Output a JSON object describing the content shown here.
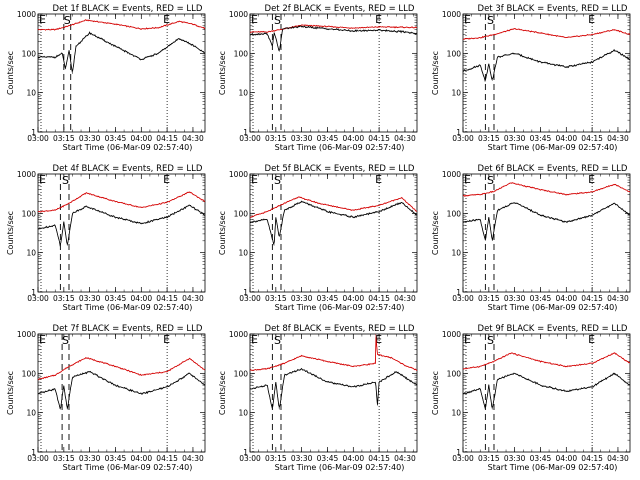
{
  "chart_data": {
    "type": "line",
    "ylabel": "Counts/sec",
    "xlabel": "Start Time (06-Mar-09 02:57:40)",
    "yscale": "log",
    "ylim": [
      1,
      1000
    ],
    "y_ticks": [
      1,
      10,
      100,
      1000
    ],
    "y_tick_labels": [
      "1",
      "10",
      "100",
      "1000"
    ],
    "xlim": [
      "03:00",
      "04:37"
    ],
    "x_ticks": [
      "03:00",
      "03:15",
      "03:30",
      "03:45",
      "04:00",
      "04:15",
      "04:30"
    ],
    "grid": false,
    "series_colors": {
      "events": "#000000",
      "lld": "#d40000"
    },
    "markers": {
      "start_label": "S",
      "end_label": "E",
      "edge_label": "E"
    },
    "panels": [
      {
        "title": "Det 1f BLACK = Events, RED = LLD",
        "dash1": "03:15",
        "dash2": "03:19",
        "dot_end": "04:15",
        "s_at": "03:17",
        "lld": [
          [
            "03:00",
            400
          ],
          [
            "03:10",
            400
          ],
          [
            "03:18",
            500
          ],
          [
            "03:28",
            700
          ],
          [
            "03:45",
            550
          ],
          [
            "04:00",
            420
          ],
          [
            "04:10",
            450
          ],
          [
            "04:22",
            650
          ],
          [
            "04:30",
            550
          ],
          [
            "04:37",
            430
          ]
        ],
        "events": [
          [
            "03:00",
            80
          ],
          [
            "03:10",
            80
          ],
          [
            "03:14",
            100
          ],
          [
            "03:16",
            40
          ],
          [
            "03:18",
            120
          ],
          [
            "03:20",
            30
          ],
          [
            "03:22",
            150
          ],
          [
            "03:30",
            330
          ],
          [
            "03:45",
            150
          ],
          [
            "04:00",
            70
          ],
          [
            "04:10",
            100
          ],
          [
            "04:22",
            240
          ],
          [
            "04:30",
            160
          ],
          [
            "04:37",
            100
          ]
        ]
      },
      {
        "title": "Det 2f BLACK = Events, RED = LLD",
        "dash1": "03:13",
        "dash2": "03:18",
        "dot_end": "04:15",
        "s_at": "03:16",
        "lld": [
          [
            "03:00",
            350
          ],
          [
            "03:10",
            350
          ],
          [
            "03:20",
            420
          ],
          [
            "03:30",
            520
          ],
          [
            "03:45",
            480
          ],
          [
            "04:00",
            440
          ],
          [
            "04:15",
            470
          ],
          [
            "04:30",
            460
          ],
          [
            "04:37",
            450
          ]
        ],
        "events": [
          [
            "03:00",
            300
          ],
          [
            "03:10",
            320
          ],
          [
            "03:13",
            150
          ],
          [
            "03:14",
            350
          ],
          [
            "03:17",
            110
          ],
          [
            "03:19",
            420
          ],
          [
            "03:30",
            480
          ],
          [
            "03:45",
            420
          ],
          [
            "04:00",
            370
          ],
          [
            "04:15",
            390
          ],
          [
            "04:30",
            350
          ],
          [
            "04:37",
            320
          ]
        ]
      },
      {
        "title": "Det 3f BLACK = Events, RED = LLD",
        "dash1": "03:13",
        "dash2": "03:18",
        "dot_end": "04:15",
        "s_at": "03:16",
        "lld": [
          [
            "03:00",
            230
          ],
          [
            "03:10",
            250
          ],
          [
            "03:18",
            300
          ],
          [
            "03:30",
            420
          ],
          [
            "03:45",
            330
          ],
          [
            "04:00",
            250
          ],
          [
            "04:15",
            300
          ],
          [
            "04:28",
            400
          ],
          [
            "04:37",
            300
          ]
        ],
        "events": [
          [
            "03:00",
            35
          ],
          [
            "03:10",
            50
          ],
          [
            "03:13",
            20
          ],
          [
            "03:15",
            55
          ],
          [
            "03:17",
            20
          ],
          [
            "03:20",
            80
          ],
          [
            "03:30",
            100
          ],
          [
            "03:45",
            60
          ],
          [
            "04:00",
            45
          ],
          [
            "04:15",
            60
          ],
          [
            "04:28",
            120
          ],
          [
            "04:37",
            70
          ]
        ]
      },
      {
        "title": "Det 4f BLACK = Events, RED = LLD",
        "dash1": "03:13",
        "dash2": "03:18",
        "dot_end": "04:15",
        "s_at": "03:16",
        "lld": [
          [
            "03:00",
            110
          ],
          [
            "03:10",
            120
          ],
          [
            "03:18",
            180
          ],
          [
            "03:28",
            330
          ],
          [
            "03:45",
            200
          ],
          [
            "04:00",
            140
          ],
          [
            "04:15",
            190
          ],
          [
            "04:28",
            350
          ],
          [
            "04:37",
            200
          ]
        ],
        "events": [
          [
            "03:00",
            40
          ],
          [
            "03:10",
            50
          ],
          [
            "03:13",
            15
          ],
          [
            "03:15",
            60
          ],
          [
            "03:17",
            15
          ],
          [
            "03:20",
            100
          ],
          [
            "03:28",
            150
          ],
          [
            "03:45",
            80
          ],
          [
            "04:00",
            55
          ],
          [
            "04:15",
            80
          ],
          [
            "04:28",
            160
          ],
          [
            "04:37",
            90
          ]
        ]
      },
      {
        "title": "Det 5f BLACK = Events, RED = LLD",
        "dash1": "03:13",
        "dash2": "03:18",
        "dot_end": "04:15",
        "s_at": "03:16",
        "lld": [
          [
            "03:00",
            80
          ],
          [
            "03:10",
            110
          ],
          [
            "03:20",
            180
          ],
          [
            "03:28",
            260
          ],
          [
            "03:40",
            180
          ],
          [
            "04:00",
            120
          ],
          [
            "04:15",
            160
          ],
          [
            "04:28",
            250
          ],
          [
            "04:37",
            110
          ]
        ],
        "events": [
          [
            "03:00",
            60
          ],
          [
            "03:10",
            70
          ],
          [
            "03:14",
            15
          ],
          [
            "03:15",
            80
          ],
          [
            "03:17",
            25
          ],
          [
            "03:20",
            120
          ],
          [
            "03:30",
            200
          ],
          [
            "03:45",
            110
          ],
          [
            "04:00",
            80
          ],
          [
            "04:15",
            110
          ],
          [
            "04:28",
            190
          ],
          [
            "04:37",
            90
          ]
        ]
      },
      {
        "title": "Det 6f BLACK = Events, RED = LLD",
        "dash1": "03:13",
        "dash2": "03:18",
        "dot_end": "04:15",
        "s_at": "03:16",
        "lld": [
          [
            "03:00",
            280
          ],
          [
            "03:10",
            300
          ],
          [
            "03:18",
            360
          ],
          [
            "03:28",
            600
          ],
          [
            "03:45",
            400
          ],
          [
            "04:00",
            300
          ],
          [
            "04:15",
            350
          ],
          [
            "04:28",
            550
          ],
          [
            "04:37",
            350
          ]
        ],
        "events": [
          [
            "03:00",
            60
          ],
          [
            "03:10",
            70
          ],
          [
            "03:13",
            20
          ],
          [
            "03:15",
            80
          ],
          [
            "03:17",
            20
          ],
          [
            "03:20",
            120
          ],
          [
            "03:30",
            190
          ],
          [
            "03:45",
            90
          ],
          [
            "04:00",
            60
          ],
          [
            "04:15",
            90
          ],
          [
            "04:28",
            180
          ],
          [
            "04:37",
            90
          ]
        ]
      },
      {
        "title": "Det 7f BLACK = Events, RED = LLD",
        "dash1": "03:14",
        "dash2": "03:18",
        "dot_end": "04:15",
        "s_at": "03:16",
        "lld": [
          [
            "03:00",
            70
          ],
          [
            "03:10",
            90
          ],
          [
            "03:18",
            150
          ],
          [
            "03:28",
            250
          ],
          [
            "03:45",
            150
          ],
          [
            "04:00",
            90
          ],
          [
            "04:15",
            110
          ],
          [
            "04:28",
            240
          ],
          [
            "04:37",
            120
          ]
        ],
        "events": [
          [
            "03:00",
            30
          ],
          [
            "03:10",
            40
          ],
          [
            "03:13",
            12
          ],
          [
            "03:15",
            50
          ],
          [
            "03:17",
            12
          ],
          [
            "03:20",
            80
          ],
          [
            "03:30",
            110
          ],
          [
            "03:45",
            50
          ],
          [
            "04:00",
            30
          ],
          [
            "04:15",
            45
          ],
          [
            "04:28",
            100
          ],
          [
            "04:37",
            50
          ]
        ]
      },
      {
        "title": "Det 8f BLACK = Events, RED = LLD",
        "dash1": "03:13",
        "dash2": "03:18",
        "dot_end": "04:15",
        "s_at": "03:16",
        "lld": [
          [
            "03:00",
            120
          ],
          [
            "03:10",
            130
          ],
          [
            "03:20",
            180
          ],
          [
            "03:30",
            280
          ],
          [
            "03:45",
            200
          ],
          [
            "04:00",
            150
          ],
          [
            "04:13",
            180
          ],
          [
            "04:13",
            1000
          ],
          [
            "04:14",
            300
          ],
          [
            "04:22",
            250
          ],
          [
            "04:30",
            160
          ],
          [
            "04:37",
            120
          ]
        ],
        "events": [
          [
            "03:00",
            40
          ],
          [
            "03:10",
            50
          ],
          [
            "03:13",
            12
          ],
          [
            "03:15",
            60
          ],
          [
            "03:17",
            12
          ],
          [
            "03:20",
            90
          ],
          [
            "03:30",
            130
          ],
          [
            "03:45",
            60
          ],
          [
            "04:00",
            45
          ],
          [
            "04:13",
            60
          ],
          [
            "04:14",
            15
          ],
          [
            "04:15",
            60
          ],
          [
            "04:25",
            110
          ],
          [
            "04:37",
            50
          ]
        ]
      },
      {
        "title": "Det 9f BLACK = Events, RED = LLD",
        "dash1": "03:13",
        "dash2": "03:18",
        "dot_end": "04:15",
        "s_at": "03:16",
        "lld": [
          [
            "03:00",
            130
          ],
          [
            "03:10",
            150
          ],
          [
            "03:18",
            200
          ],
          [
            "03:28",
            330
          ],
          [
            "03:45",
            200
          ],
          [
            "04:00",
            150
          ],
          [
            "04:15",
            180
          ],
          [
            "04:28",
            330
          ],
          [
            "04:37",
            180
          ]
        ],
        "events": [
          [
            "03:00",
            30
          ],
          [
            "03:10",
            40
          ],
          [
            "03:13",
            12
          ],
          [
            "03:15",
            50
          ],
          [
            "03:17",
            12
          ],
          [
            "03:20",
            70
          ],
          [
            "03:30",
            100
          ],
          [
            "03:45",
            50
          ],
          [
            "04:00",
            35
          ],
          [
            "04:15",
            45
          ],
          [
            "04:28",
            100
          ],
          [
            "04:37",
            50
          ]
        ]
      }
    ]
  }
}
